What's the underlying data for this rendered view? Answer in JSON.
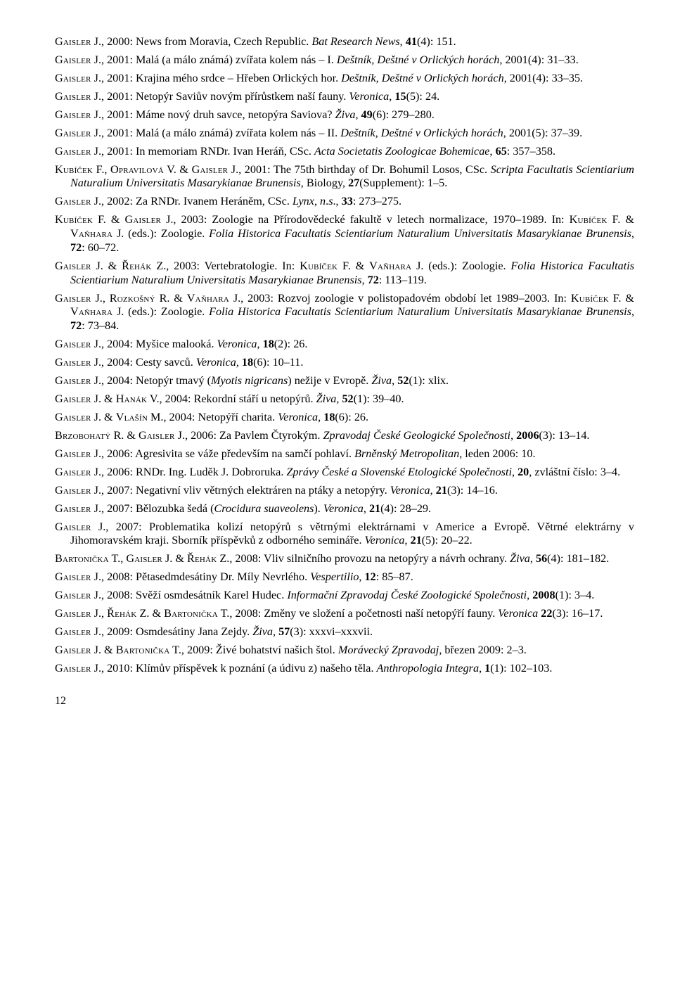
{
  "entries": [
    [
      {
        "t": "sc",
        "v": "Gaisler"
      },
      " J., 2000: News from Moravia, Czech Republic. ",
      {
        "t": "i",
        "v": "Bat Research News"
      },
      ", ",
      {
        "t": "b",
        "v": "41"
      },
      "(4): 151."
    ],
    [
      {
        "t": "sc",
        "v": "Gaisler"
      },
      " J., 2001: Malá (a málo známá) zvířata kolem nás – I. ",
      {
        "t": "i",
        "v": "Deštník, Deštné v Orlických horách"
      },
      ", 2001(4): 31–33."
    ],
    [
      {
        "t": "sc",
        "v": "Gaisler"
      },
      " J., 2001: Krajina mého srdce – Hřeben Orlických hor. ",
      {
        "t": "i",
        "v": "Deštník, Deštné v Orlických horách"
      },
      ", 2001(4): 33–35."
    ],
    [
      {
        "t": "sc",
        "v": "Gaisler"
      },
      " J., 2001: Netopýr Saviův novým přírůstkem naší fauny. ",
      {
        "t": "i",
        "v": "Veronica"
      },
      ", ",
      {
        "t": "b",
        "v": "15"
      },
      "(5): 24."
    ],
    [
      {
        "t": "sc",
        "v": "Gaisler"
      },
      " J., 2001: Máme nový druh savce, netopýra Saviova? ",
      {
        "t": "i",
        "v": "Živa"
      },
      ", ",
      {
        "t": "b",
        "v": "49"
      },
      "(6): 279–280."
    ],
    [
      {
        "t": "sc",
        "v": "Gaisler"
      },
      " J., 2001: Malá (a málo známá) zvířata kolem nás – II. ",
      {
        "t": "i",
        "v": "Deštník, Deštné v Orlických horách"
      },
      ", 2001(5): 37–39."
    ],
    [
      {
        "t": "sc",
        "v": "Gaisler"
      },
      " J., 2001: In memoriam RNDr. Ivan Heráň, CSc. ",
      {
        "t": "i",
        "v": "Acta Societatis Zoologicae Bohemicae"
      },
      ", ",
      {
        "t": "b",
        "v": "65"
      },
      ": 357–358."
    ],
    [
      {
        "t": "sc",
        "v": "Kubíček"
      },
      " F., ",
      {
        "t": "sc",
        "v": "Opravilová"
      },
      " V. & ",
      {
        "t": "sc",
        "v": "Gaisler"
      },
      " J., 2001: The 75th birthday of Dr. Bohumil Losos, CSc. ",
      {
        "t": "i",
        "v": "Scripta Facultatis Scientiarium Naturalium Universitatis Masarykianae Brunensis"
      },
      ", Biology, ",
      {
        "t": "b",
        "v": "27"
      },
      "(Supplement): 1–5."
    ],
    [
      {
        "t": "sc",
        "v": "Gaisler"
      },
      " J., 2002: Za RNDr. Ivanem Heráněm, CSc. ",
      {
        "t": "i",
        "v": "Lynx"
      },
      ", ",
      {
        "t": "i",
        "v": "n"
      },
      ".",
      {
        "t": "i",
        "v": "s"
      },
      "., ",
      {
        "t": "b",
        "v": "33"
      },
      ": 273–275."
    ],
    [
      {
        "t": "sc",
        "v": "Kubíček"
      },
      " F. & ",
      {
        "t": "sc",
        "v": "Gaisler"
      },
      " J., 2003: Zoologie na Přírodovědecké fakultě v letech normalizace, 1970–1989. In: ",
      {
        "t": "sc",
        "v": "Kubíček"
      },
      " F. & ",
      {
        "t": "sc",
        "v": "Vaňhara"
      },
      " J. (eds.): Zoologie. ",
      {
        "t": "i",
        "v": "Folia Historica Facultatis Scientiarium Naturalium Universitatis Masarykianae Brunensis"
      },
      ", ",
      {
        "t": "b",
        "v": "72"
      },
      ": 60–72."
    ],
    [
      {
        "t": "sc",
        "v": "Gaisler"
      },
      " J. & ",
      {
        "t": "sc",
        "v": "Řehák"
      },
      " Z., 2003: Vertebratologie. In: ",
      {
        "t": "sc",
        "v": "Kubíček"
      },
      " F. & ",
      {
        "t": "sc",
        "v": "Vaňhara"
      },
      " J. (eds.): Zoologie. ",
      {
        "t": "i",
        "v": "Folia Historica Facultatis Scientiarium Naturalium Universitatis Masarykianae Brunensis"
      },
      ", ",
      {
        "t": "b",
        "v": "72"
      },
      ": 113–119."
    ],
    [
      {
        "t": "sc",
        "v": "Gaisler"
      },
      " J., ",
      {
        "t": "sc",
        "v": "Rozkošný"
      },
      " R. & ",
      {
        "t": "sc",
        "v": "Vaňhara"
      },
      " J., 2003: Rozvoj zoologie v polistopadovém období let 1989–2003. In: ",
      {
        "t": "sc",
        "v": "Kubíček"
      },
      " F. & ",
      {
        "t": "sc",
        "v": "Vaňhara"
      },
      " J. (eds.): Zoologie. ",
      {
        "t": "i",
        "v": "Folia Historica Facultatis Scientiarium Naturalium Universitatis Masarykianae Brunensis"
      },
      ", ",
      {
        "t": "b",
        "v": "72"
      },
      ": 73–84."
    ],
    [
      {
        "t": "sc",
        "v": "Gaisler"
      },
      " J., 2004: Myšice malooká. ",
      {
        "t": "i",
        "v": "Veronica"
      },
      ", ",
      {
        "t": "b",
        "v": "18"
      },
      "(2): 26."
    ],
    [
      {
        "t": "sc",
        "v": "Gaisler"
      },
      " J., 2004: Cesty savců. ",
      {
        "t": "i",
        "v": "Veronica"
      },
      ", ",
      {
        "t": "b",
        "v": "18"
      },
      "(6): 10–11."
    ],
    [
      {
        "t": "sc",
        "v": "Gaisler"
      },
      " J., 2004: Netopýr tmavý (",
      {
        "t": "i",
        "v": "Myotis nigricans"
      },
      ") nežije v Evropě. ",
      {
        "t": "i",
        "v": "Živa"
      },
      ", ",
      {
        "t": "b",
        "v": "52"
      },
      "(1): xlix."
    ],
    [
      {
        "t": "sc",
        "v": "Gaisler"
      },
      " J. & ",
      {
        "t": "sc",
        "v": "Hanák"
      },
      " V., 2004: Rekordní stáří u netopýrů. ",
      {
        "t": "i",
        "v": "Živa"
      },
      ", ",
      {
        "t": "b",
        "v": "52"
      },
      "(1): 39–40."
    ],
    [
      {
        "t": "sc",
        "v": "Gaisler"
      },
      " J. & ",
      {
        "t": "sc",
        "v": "Vlašín"
      },
      " M., 2004: Netopýří charita. ",
      {
        "t": "i",
        "v": "Veronica"
      },
      ", ",
      {
        "t": "b",
        "v": "18"
      },
      "(6): 26."
    ],
    [
      {
        "t": "sc",
        "v": "Brzobohatý"
      },
      " R. & ",
      {
        "t": "sc",
        "v": "Gaisler"
      },
      " J., 2006: Za Pavlem Čtyrokým. ",
      {
        "t": "i",
        "v": "Zpravodaj České Geologické Společnosti"
      },
      ", ",
      {
        "t": "b",
        "v": "2006"
      },
      "(3): 13–14."
    ],
    [
      {
        "t": "sc",
        "v": "Gaisler"
      },
      " J., 2006: Agresivita se váže především na samčí pohlaví. ",
      {
        "t": "i",
        "v": "Brněnský Metropolitan"
      },
      ", leden 2006: 10."
    ],
    [
      {
        "t": "sc",
        "v": "Gaisler"
      },
      " J., 2006: RNDr. Ing. Luděk J. Dobroruka. ",
      {
        "t": "i",
        "v": "Zprávy České a Slovenské Etologické Společnosti"
      },
      ", ",
      {
        "t": "b",
        "v": "20"
      },
      ", zvláštní číslo: 3–4."
    ],
    [
      {
        "t": "sc",
        "v": "Gaisler"
      },
      " J., 2007: Negativní vliv větrných elektráren na ptáky a netopýry. ",
      {
        "t": "i",
        "v": "Veronica"
      },
      ", ",
      {
        "t": "b",
        "v": "21"
      },
      "(3): 14–16."
    ],
    [
      {
        "t": "sc",
        "v": "Gaisler"
      },
      " J., 2007: Bělozubka šedá (",
      {
        "t": "i",
        "v": "Crocidura suaveolens"
      },
      "). ",
      {
        "t": "i",
        "v": "Veronica"
      },
      ", ",
      {
        "t": "b",
        "v": "21"
      },
      "(4): 28–29."
    ],
    [
      {
        "t": "sc",
        "v": "Gaisler"
      },
      " J., 2007: Problematika kolizí netopýrů s větrnými elektrárnami v Americe a Evropě. Větrné elektrárny v Jihomoravském kraji. Sborník příspěvků z odborného semináře. ",
      {
        "t": "i",
        "v": "Veronica"
      },
      ", ",
      {
        "t": "b",
        "v": "21"
      },
      "(5): 20–22."
    ],
    [
      {
        "t": "sc",
        "v": "Bartonička"
      },
      " T., ",
      {
        "t": "sc",
        "v": "Gaisler"
      },
      " J. & ",
      {
        "t": "sc",
        "v": "Řehák"
      },
      " Z., 2008: Vliv silničního provozu na netopýry a návrh ochrany. ",
      {
        "t": "i",
        "v": "Živa"
      },
      ", ",
      {
        "t": "b",
        "v": "56"
      },
      "(4): 181–182."
    ],
    [
      {
        "t": "sc",
        "v": "Gaisler"
      },
      " J., 2008: Pětasedmdesátiny Dr. Míly Nevrlého. ",
      {
        "t": "i",
        "v": "Vespertilio"
      },
      ", ",
      {
        "t": "b",
        "v": "12"
      },
      ": 85–87."
    ],
    [
      {
        "t": "sc",
        "v": "Gaisler"
      },
      " J., 2008: Svěží osmdesátník Karel Hudec. ",
      {
        "t": "i",
        "v": "Informační Zpravodaj České Zoologické Společnosti"
      },
      ", ",
      {
        "t": "b",
        "v": "2008"
      },
      "(1): 3–4."
    ],
    [
      {
        "t": "sc",
        "v": "Gaisler"
      },
      " J., ",
      {
        "t": "sc",
        "v": "Řehák"
      },
      " Z. & ",
      {
        "t": "sc",
        "v": "Bartonička"
      },
      " T., 2008: Změny ve složení a početnosti naší netopýří fauny. ",
      {
        "t": "i",
        "v": "Veronica"
      },
      " ",
      {
        "t": "b",
        "v": "22"
      },
      "(3): 16–17."
    ],
    [
      {
        "t": "sc",
        "v": "Gaisler"
      },
      " J., 2009: Osmdesátiny Jana Zejdy. ",
      {
        "t": "i",
        "v": "Živa"
      },
      ", ",
      {
        "t": "b",
        "v": "57"
      },
      "(3): xxxvi–xxxvii."
    ],
    [
      {
        "t": "sc",
        "v": "Gaisler"
      },
      " J. & ",
      {
        "t": "sc",
        "v": "Bartonička"
      },
      " T., 2009: Živé bohatství našich štol. ",
      {
        "t": "i",
        "v": "Morávecký Zpravodaj"
      },
      ", březen 2009: 2–3."
    ],
    [
      {
        "t": "sc",
        "v": "Gaisler"
      },
      " J., 2010: Klímův příspěvek k poznání (a údivu z) našeho těla. ",
      {
        "t": "i",
        "v": "Anthropologia Integra"
      },
      ", ",
      {
        "t": "b",
        "v": "1"
      },
      "(1): 102–103."
    ]
  ],
  "pageNumber": "12"
}
